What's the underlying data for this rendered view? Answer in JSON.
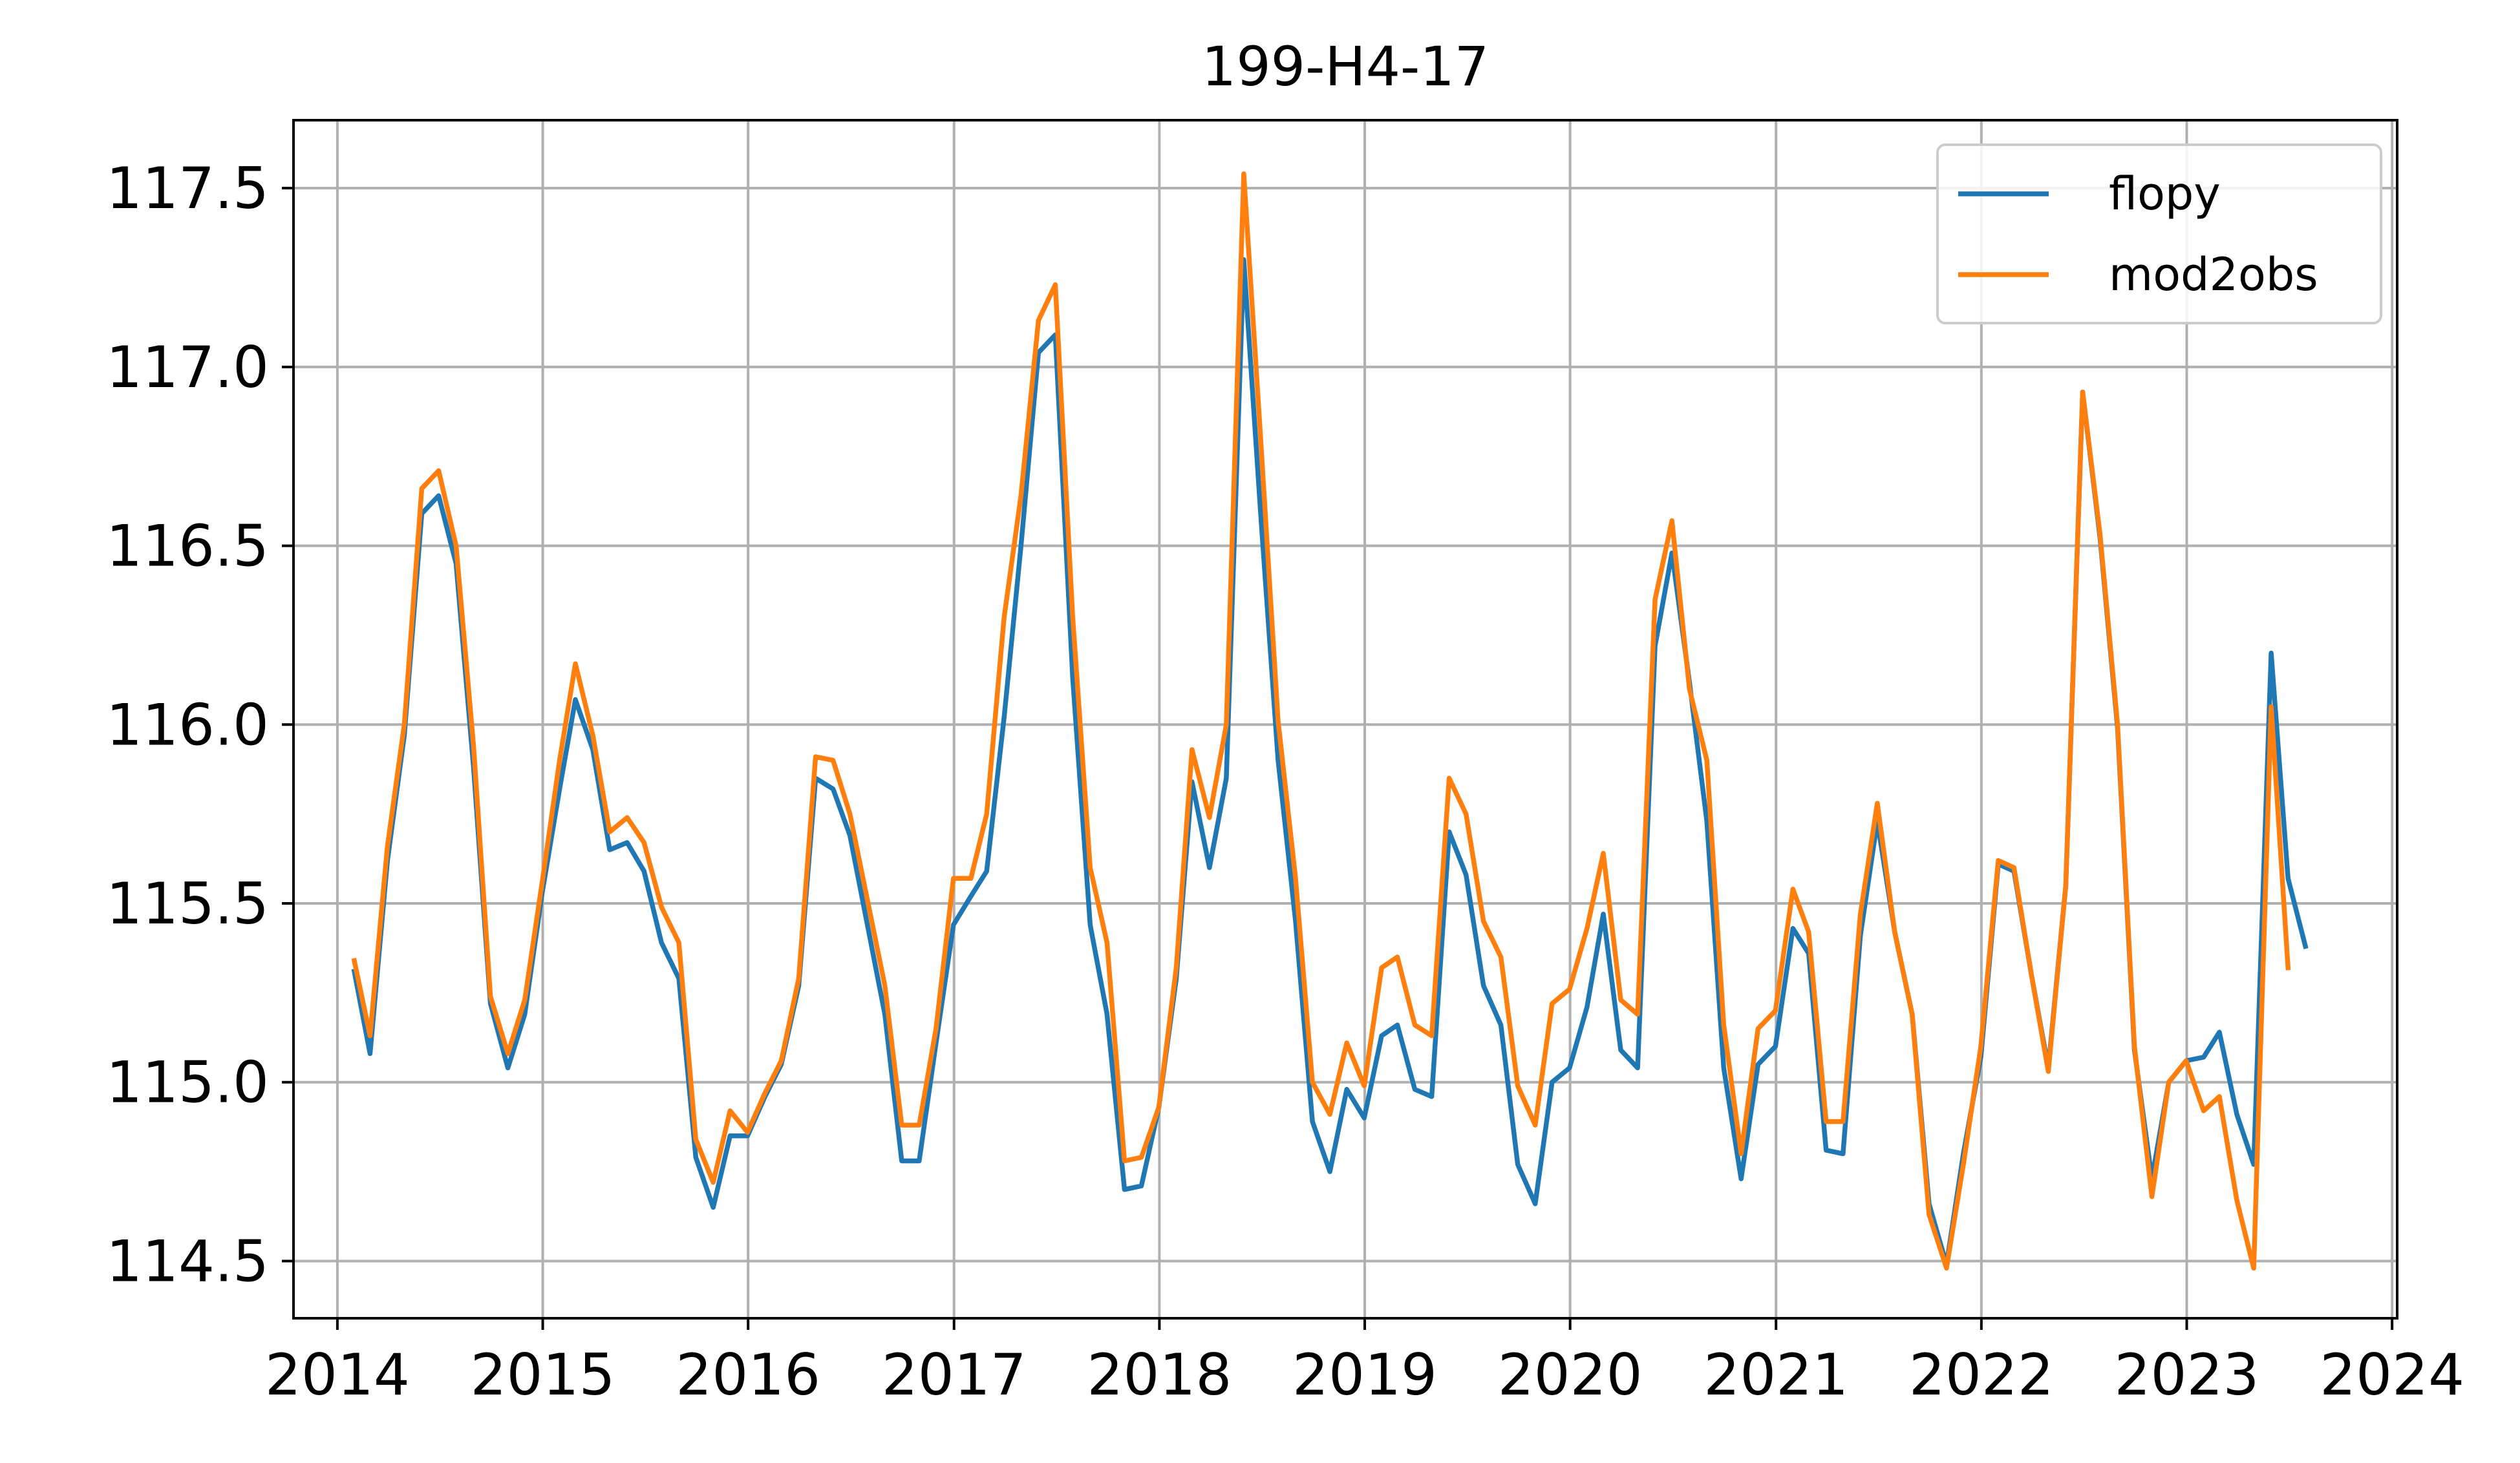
{
  "chart_data": {
    "type": "line",
    "title": "199-H4-17",
    "xlabel": "",
    "ylabel": "",
    "xlim": [
      "2013-10-15",
      "2024-01-10"
    ],
    "ylim": [
      114.34,
      117.69
    ],
    "xticks": [
      "2014",
      "2015",
      "2016",
      "2017",
      "2018",
      "2019",
      "2020",
      "2021",
      "2022",
      "2023",
      "2024"
    ],
    "yticks": [
      "114.5",
      "115.0",
      "115.5",
      "116.0",
      "116.5",
      "117.0",
      "117.5"
    ],
    "grid": true,
    "legend_position": "top-right",
    "series": [
      {
        "name": "flopy",
        "color": "#1f77b4",
        "points": [
          [
            "2014-01-31",
            115.31
          ],
          [
            "2014-02-28",
            115.08
          ],
          [
            "2014-03-31",
            115.62
          ],
          [
            "2014-04-30",
            115.97
          ],
          [
            "2014-05-31",
            116.59
          ],
          [
            "2014-06-30",
            116.64
          ],
          [
            "2014-07-31",
            116.45
          ],
          [
            "2014-08-31",
            115.88
          ],
          [
            "2014-09-30",
            115.22
          ],
          [
            "2014-10-31",
            115.04
          ],
          [
            "2014-11-30",
            115.19
          ],
          [
            "2014-12-31",
            115.53
          ],
          [
            "2015-01-31",
            115.82
          ],
          [
            "2015-02-28",
            116.07
          ],
          [
            "2015-03-31",
            115.93
          ],
          [
            "2015-04-30",
            115.65
          ],
          [
            "2015-05-31",
            115.67
          ],
          [
            "2015-06-30",
            115.59
          ],
          [
            "2015-07-31",
            115.39
          ],
          [
            "2015-08-31",
            115.29
          ],
          [
            "2015-09-30",
            114.79
          ],
          [
            "2015-10-31",
            114.65
          ],
          [
            "2015-11-30",
            114.85
          ],
          [
            "2015-12-31",
            114.85
          ],
          [
            "2016-01-31",
            114.96
          ],
          [
            "2016-02-29",
            115.05
          ],
          [
            "2016-03-31",
            115.27
          ],
          [
            "2016-04-30",
            115.85
          ],
          [
            "2016-05-31",
            115.82
          ],
          [
            "2016-06-30",
            115.69
          ],
          [
            "2016-07-31",
            115.44
          ],
          [
            "2016-08-31",
            115.19
          ],
          [
            "2016-09-30",
            114.78
          ],
          [
            "2016-10-31",
            114.78
          ],
          [
            "2016-11-30",
            115.11
          ],
          [
            "2016-12-31",
            115.44
          ],
          [
            "2017-01-31",
            115.52
          ],
          [
            "2017-02-28",
            115.59
          ],
          [
            "2017-03-31",
            116.02
          ],
          [
            "2017-04-30",
            116.5
          ],
          [
            "2017-05-31",
            117.04
          ],
          [
            "2017-06-30",
            117.09
          ],
          [
            "2017-07-31",
            116.13
          ],
          [
            "2017-08-31",
            115.44
          ],
          [
            "2017-09-30",
            115.19
          ],
          [
            "2017-10-31",
            114.7
          ],
          [
            "2017-11-30",
            114.71
          ],
          [
            "2017-12-31",
            114.93
          ],
          [
            "2018-01-31",
            115.29
          ],
          [
            "2018-02-28",
            115.84
          ],
          [
            "2018-03-31",
            115.6
          ],
          [
            "2018-04-30",
            115.85
          ],
          [
            "2018-05-31",
            117.3
          ],
          [
            "2018-06-30",
            116.59
          ],
          [
            "2018-07-31",
            115.9
          ],
          [
            "2018-08-31",
            115.45
          ],
          [
            "2018-09-30",
            114.89
          ],
          [
            "2018-10-31",
            114.75
          ],
          [
            "2018-11-30",
            114.98
          ],
          [
            "2018-12-31",
            114.9
          ],
          [
            "2019-01-31",
            115.13
          ],
          [
            "2019-02-28",
            115.16
          ],
          [
            "2019-03-31",
            114.98
          ],
          [
            "2019-04-30",
            114.96
          ],
          [
            "2019-05-31",
            115.7
          ],
          [
            "2019-06-30",
            115.58
          ],
          [
            "2019-07-31",
            115.27
          ],
          [
            "2019-08-31",
            115.16
          ],
          [
            "2019-09-30",
            114.77
          ],
          [
            "2019-10-31",
            114.66
          ],
          [
            "2019-11-30",
            115.0
          ],
          [
            "2019-12-31",
            115.04
          ],
          [
            "2020-01-31",
            115.21
          ],
          [
            "2020-02-29",
            115.47
          ],
          [
            "2020-03-31",
            115.09
          ],
          [
            "2020-04-30",
            115.04
          ],
          [
            "2020-05-31",
            116.22
          ],
          [
            "2020-06-30",
            116.48
          ],
          [
            "2020-07-31",
            116.12
          ],
          [
            "2020-08-31",
            115.73
          ],
          [
            "2020-09-30",
            115.04
          ],
          [
            "2020-10-31",
            114.73
          ],
          [
            "2020-11-30",
            115.05
          ],
          [
            "2020-12-31",
            115.1
          ],
          [
            "2021-01-31",
            115.43
          ],
          [
            "2021-02-28",
            115.36
          ],
          [
            "2021-03-31",
            114.81
          ],
          [
            "2021-04-30",
            114.8
          ],
          [
            "2021-05-31",
            115.41
          ],
          [
            "2021-06-30",
            115.73
          ],
          [
            "2021-07-31",
            115.42
          ],
          [
            "2021-08-31",
            115.19
          ],
          [
            "2021-09-30",
            114.66
          ],
          [
            "2021-10-31",
            114.49
          ],
          [
            "2021-11-30",
            114.8
          ],
          [
            "2021-12-31",
            115.07
          ],
          [
            "2022-01-31",
            115.61
          ],
          [
            "2022-02-28",
            115.59
          ],
          [
            "2022-03-31",
            115.3
          ],
          [
            "2022-04-30",
            115.04
          ],
          [
            "2022-05-31",
            115.55
          ],
          [
            "2022-06-30",
            116.93
          ],
          [
            "2022-07-31",
            116.52
          ],
          [
            "2022-08-31",
            115.99
          ],
          [
            "2022-09-30",
            115.09
          ],
          [
            "2022-10-31",
            114.73
          ],
          [
            "2022-11-30",
            115.0
          ],
          [
            "2022-12-31",
            115.06
          ],
          [
            "2023-01-31",
            115.07
          ],
          [
            "2023-02-28",
            115.14
          ],
          [
            "2023-03-31",
            114.91
          ],
          [
            "2023-04-30",
            114.77
          ],
          [
            "2023-05-31",
            116.2
          ],
          [
            "2023-06-30",
            115.57
          ],
          [
            "2023-07-31",
            115.38
          ]
        ]
      },
      {
        "name": "mod2obs",
        "color": "#ff7f0e",
        "points": [
          [
            "2014-01-31",
            115.34
          ],
          [
            "2014-02-28",
            115.13
          ],
          [
            "2014-03-31",
            115.66
          ],
          [
            "2014-04-30",
            116.0
          ],
          [
            "2014-05-31",
            116.66
          ],
          [
            "2014-06-30",
            116.71
          ],
          [
            "2014-07-31",
            116.5
          ],
          [
            "2014-08-31",
            115.94
          ],
          [
            "2014-09-30",
            115.24
          ],
          [
            "2014-10-31",
            115.08
          ],
          [
            "2014-11-30",
            115.23
          ],
          [
            "2014-12-31",
            115.56
          ],
          [
            "2015-01-31",
            115.9
          ],
          [
            "2015-02-28",
            116.17
          ],
          [
            "2015-03-31",
            115.97
          ],
          [
            "2015-04-30",
            115.7
          ],
          [
            "2015-05-31",
            115.74
          ],
          [
            "2015-06-30",
            115.67
          ],
          [
            "2015-07-31",
            115.49
          ],
          [
            "2015-08-31",
            115.39
          ],
          [
            "2015-09-30",
            114.84
          ],
          [
            "2015-10-31",
            114.72
          ],
          [
            "2015-11-30",
            114.92
          ],
          [
            "2015-12-31",
            114.86
          ],
          [
            "2016-01-31",
            114.97
          ],
          [
            "2016-02-29",
            115.06
          ],
          [
            "2016-03-31",
            115.29
          ],
          [
            "2016-04-30",
            115.91
          ],
          [
            "2016-05-31",
            115.9
          ],
          [
            "2016-06-30",
            115.75
          ],
          [
            "2016-07-31",
            115.51
          ],
          [
            "2016-08-31",
            115.27
          ],
          [
            "2016-09-30",
            114.88
          ],
          [
            "2016-10-31",
            114.88
          ],
          [
            "2016-11-30",
            115.15
          ],
          [
            "2016-12-31",
            115.57
          ],
          [
            "2017-01-31",
            115.57
          ],
          [
            "2017-02-28",
            115.75
          ],
          [
            "2017-03-31",
            116.3
          ],
          [
            "2017-04-30",
            116.64
          ],
          [
            "2017-05-31",
            117.13
          ],
          [
            "2017-06-30",
            117.23
          ],
          [
            "2017-07-31",
            116.3
          ],
          [
            "2017-08-31",
            115.6
          ],
          [
            "2017-09-30",
            115.39
          ],
          [
            "2017-10-31",
            114.78
          ],
          [
            "2017-11-30",
            114.79
          ],
          [
            "2017-12-31",
            114.93
          ],
          [
            "2018-01-31",
            115.32
          ],
          [
            "2018-02-28",
            115.93
          ],
          [
            "2018-03-31",
            115.74
          ],
          [
            "2018-04-30",
            116.0
          ],
          [
            "2018-05-31",
            117.54
          ],
          [
            "2018-06-30",
            116.8
          ],
          [
            "2018-07-31",
            116.01
          ],
          [
            "2018-08-31",
            115.57
          ],
          [
            "2018-09-30",
            115.0
          ],
          [
            "2018-10-31",
            114.91
          ],
          [
            "2018-11-30",
            115.11
          ],
          [
            "2018-12-31",
            114.99
          ],
          [
            "2019-01-31",
            115.32
          ],
          [
            "2019-02-28",
            115.35
          ],
          [
            "2019-03-31",
            115.16
          ],
          [
            "2019-04-30",
            115.13
          ],
          [
            "2019-05-31",
            115.85
          ],
          [
            "2019-06-30",
            115.75
          ],
          [
            "2019-07-31",
            115.45
          ],
          [
            "2019-08-31",
            115.35
          ],
          [
            "2019-09-30",
            114.99
          ],
          [
            "2019-10-31",
            114.88
          ],
          [
            "2019-11-30",
            115.22
          ],
          [
            "2019-12-31",
            115.26
          ],
          [
            "2020-01-31",
            115.43
          ],
          [
            "2020-02-29",
            115.64
          ],
          [
            "2020-03-31",
            115.23
          ],
          [
            "2020-04-30",
            115.19
          ],
          [
            "2020-05-31",
            116.35
          ],
          [
            "2020-06-30",
            116.57
          ],
          [
            "2020-07-31",
            116.1
          ],
          [
            "2020-08-31",
            115.9
          ],
          [
            "2020-09-30",
            115.16
          ],
          [
            "2020-10-31",
            114.8
          ],
          [
            "2020-11-30",
            115.15
          ],
          [
            "2020-12-31",
            115.2
          ],
          [
            "2021-01-31",
            115.54
          ],
          [
            "2021-02-28",
            115.42
          ],
          [
            "2021-03-31",
            114.89
          ],
          [
            "2021-04-30",
            114.89
          ],
          [
            "2021-05-31",
            115.47
          ],
          [
            "2021-06-30",
            115.78
          ],
          [
            "2021-07-31",
            115.42
          ],
          [
            "2021-08-31",
            115.19
          ],
          [
            "2021-09-30",
            114.63
          ],
          [
            "2021-10-31",
            114.48
          ],
          [
            "2021-11-30",
            114.77
          ],
          [
            "2021-12-31",
            115.1
          ],
          [
            "2022-01-31",
            115.62
          ],
          [
            "2022-02-28",
            115.6
          ],
          [
            "2022-03-31",
            115.3
          ],
          [
            "2022-04-30",
            115.03
          ],
          [
            "2022-05-31",
            115.55
          ],
          [
            "2022-06-30",
            116.93
          ],
          [
            "2022-07-31",
            116.53
          ],
          [
            "2022-08-31",
            116.0
          ],
          [
            "2022-09-30",
            115.1
          ],
          [
            "2022-10-31",
            114.68
          ],
          [
            "2022-11-30",
            115.0
          ],
          [
            "2022-12-31",
            115.06
          ],
          [
            "2023-01-31",
            114.92
          ],
          [
            "2023-02-28",
            114.96
          ],
          [
            "2023-03-31",
            114.67
          ],
          [
            "2023-04-30",
            114.48
          ],
          [
            "2023-05-31",
            116.05
          ],
          [
            "2023-06-30",
            115.32
          ]
        ]
      }
    ]
  }
}
